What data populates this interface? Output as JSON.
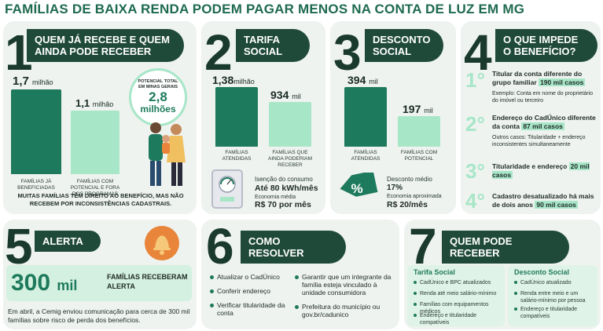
{
  "title": "FAMÍLIAS DE BAIXA RENDA PODEM PAGAR MENOS NA CONTA DE LUZ EM MG",
  "s1": {
    "num": "1",
    "heading": "QUEM JÁ RECEBE E QUEM AINDA PODE RECEBER",
    "bar1_value": "1,7",
    "bar1_unit": "milhão",
    "bar1_caption": "FAMÍLIAS JÁ BENEFICIADAS",
    "bar2_value": "1,1",
    "bar2_unit": "milhão",
    "bar2_caption": "FAMÍLIAS COM POTENCIAL E FORA DOS PROGRAMAS",
    "potential_label": "POTENCIAL TOTAL EM MINAS GERAIS",
    "potential_value": "2,8",
    "potential_unit": "milhões",
    "note": "MUITAS FAMÍLIAS TÊM DIREITO AO BENEFÍCIO, MAS NÃO RECEBEM POR INCONSISTÊNCIAS CADASTRAIS."
  },
  "s2": {
    "num": "2",
    "heading": "TARIFA SOCIAL",
    "bar1_value": "1,38",
    "bar1_unit": "milhão",
    "bar1_caption": "FAMÍLIAS ATENDIDAS",
    "bar2_value": "934",
    "bar2_unit": "mil",
    "bar2_caption": "FAMÍLIAS QUE AINDA PODERIAM RECEBER",
    "exempt_label": "Isenção do consumo",
    "exempt_value": "Até 80 kWh/mês",
    "saving_label": "Economia média",
    "saving_value": "R$ 70 por mês"
  },
  "s3": {
    "num": "3",
    "heading": "DESCONTO SOCIAL",
    "bar1_value": "394",
    "bar1_unit": "mil",
    "bar1_caption": "FAMÍLIAS ATENDIDAS",
    "bar2_value": "197",
    "bar2_unit": "mil",
    "bar2_caption": "FAMÍLIAS COM POTENCIAL",
    "discount_label": "Desconto médio",
    "discount_value": "17%",
    "saving_label": "Economia aproximada",
    "saving_value": "R$ 20/mês"
  },
  "s4": {
    "num": "4",
    "heading": "O QUE IMPEDE O BENEFÍCIO?",
    "items": [
      {
        "ord": "1°",
        "text": "Titular da conta diferente do grupo familiar",
        "hl": "190 mil casos",
        "sub": "Exemplo: Conta em nome do proprietário do imóvel ou terceiro"
      },
      {
        "ord": "2°",
        "text": "Endereço do CadÚnico diferente da conta",
        "hl": "87 mil casos",
        "sub": "Outros casos: Titularidade + endereço inconsistentes simultaneamente"
      },
      {
        "ord": "3°",
        "text": "Titularidade e endereço",
        "hl": "20 mil casos",
        "sub": ""
      },
      {
        "ord": "4°",
        "text": "Cadastro desatualizado há mais de dois anos",
        "hl": "90 mil casos",
        "sub": ""
      }
    ]
  },
  "s5": {
    "num": "5",
    "heading": "ALERTA",
    "value": "300",
    "unit": "mil",
    "label": "FAMÍLIAS RECEBERAM ALERTA",
    "text": "Em abril, a Cemig enviou comunicação para cerca de 300 mil famílias sobre risco de perda dos benefícios."
  },
  "s6": {
    "num": "6",
    "heading": "COMO RESOLVER",
    "left": [
      "Atualizar o CadÚnico",
      "Conferir endereço",
      "Verificar titularidade da conta"
    ],
    "right": [
      "Garantir que um integrante da família esteja vinculado à unidade consumidora",
      "Prefeitura do município ou gov.br/cadunico"
    ]
  },
  "s7": {
    "num": "7",
    "heading": "QUEM PODE RECEBER",
    "col1_title": "Tarifa Social",
    "col1": [
      "CadÚnico e BPC atualizados",
      "Renda até meio salário-mínimo",
      "Famílias com equipamentos médicos",
      "Endereço e titularidade compatíveis"
    ],
    "col2_title": "Desconto Social",
    "col2": [
      "CadÚnico atualizado",
      "Renda entre meio e um salário-mínimo por pessoa",
      "Endereço e titularidade compatíveis"
    ]
  },
  "colors": {
    "primary": "#1e7a5c",
    "light": "#a8e6c8",
    "dark": "#1f4a3a",
    "title": "#1e6a4e",
    "panel": "#eef3ef",
    "orange": "#e8853a"
  },
  "icons": [
    "family-illustration",
    "electric-meter-icon",
    "percent-tag-icon",
    "bell-icon"
  ]
}
